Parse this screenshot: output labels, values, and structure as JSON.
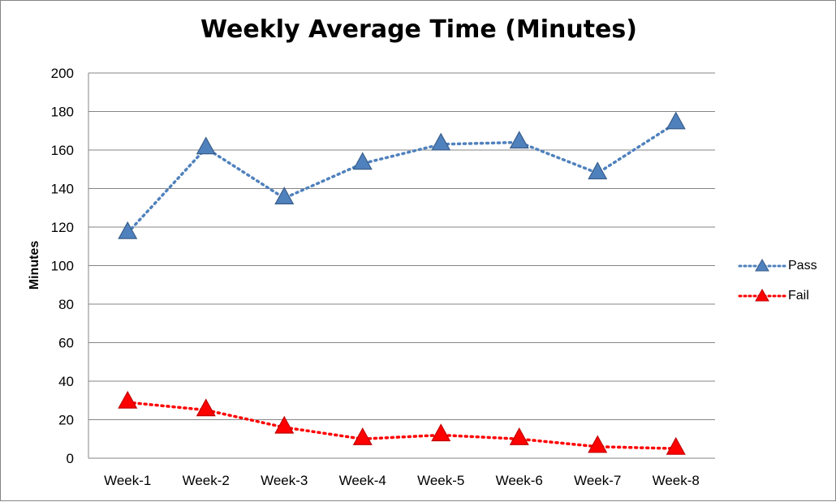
{
  "chart_data": {
    "type": "line",
    "title": "Weekly Average Time (Minutes)",
    "xlabel": "",
    "ylabel": "Minutes",
    "categories": [
      "Week-1",
      "Week-2",
      "Week-3",
      "Week-4",
      "Week-5",
      "Week-6",
      "Week-7",
      "Week-8"
    ],
    "ylim": [
      0,
      200
    ],
    "yticks": [
      0,
      20,
      40,
      60,
      80,
      100,
      120,
      140,
      160,
      180,
      200
    ],
    "grid": true,
    "legend_position": "right",
    "series": [
      {
        "name": "Pass",
        "values": [
          117,
          161,
          135,
          153,
          163,
          164,
          148,
          174
        ],
        "color": "#4F81BD",
        "line_style": "dotted",
        "marker": "triangle"
      },
      {
        "name": "Fail",
        "values": [
          29,
          25,
          16,
          10,
          12,
          10,
          6,
          5
        ],
        "color": "#FF0000",
        "line_style": "dotted",
        "marker": "triangle"
      }
    ]
  }
}
